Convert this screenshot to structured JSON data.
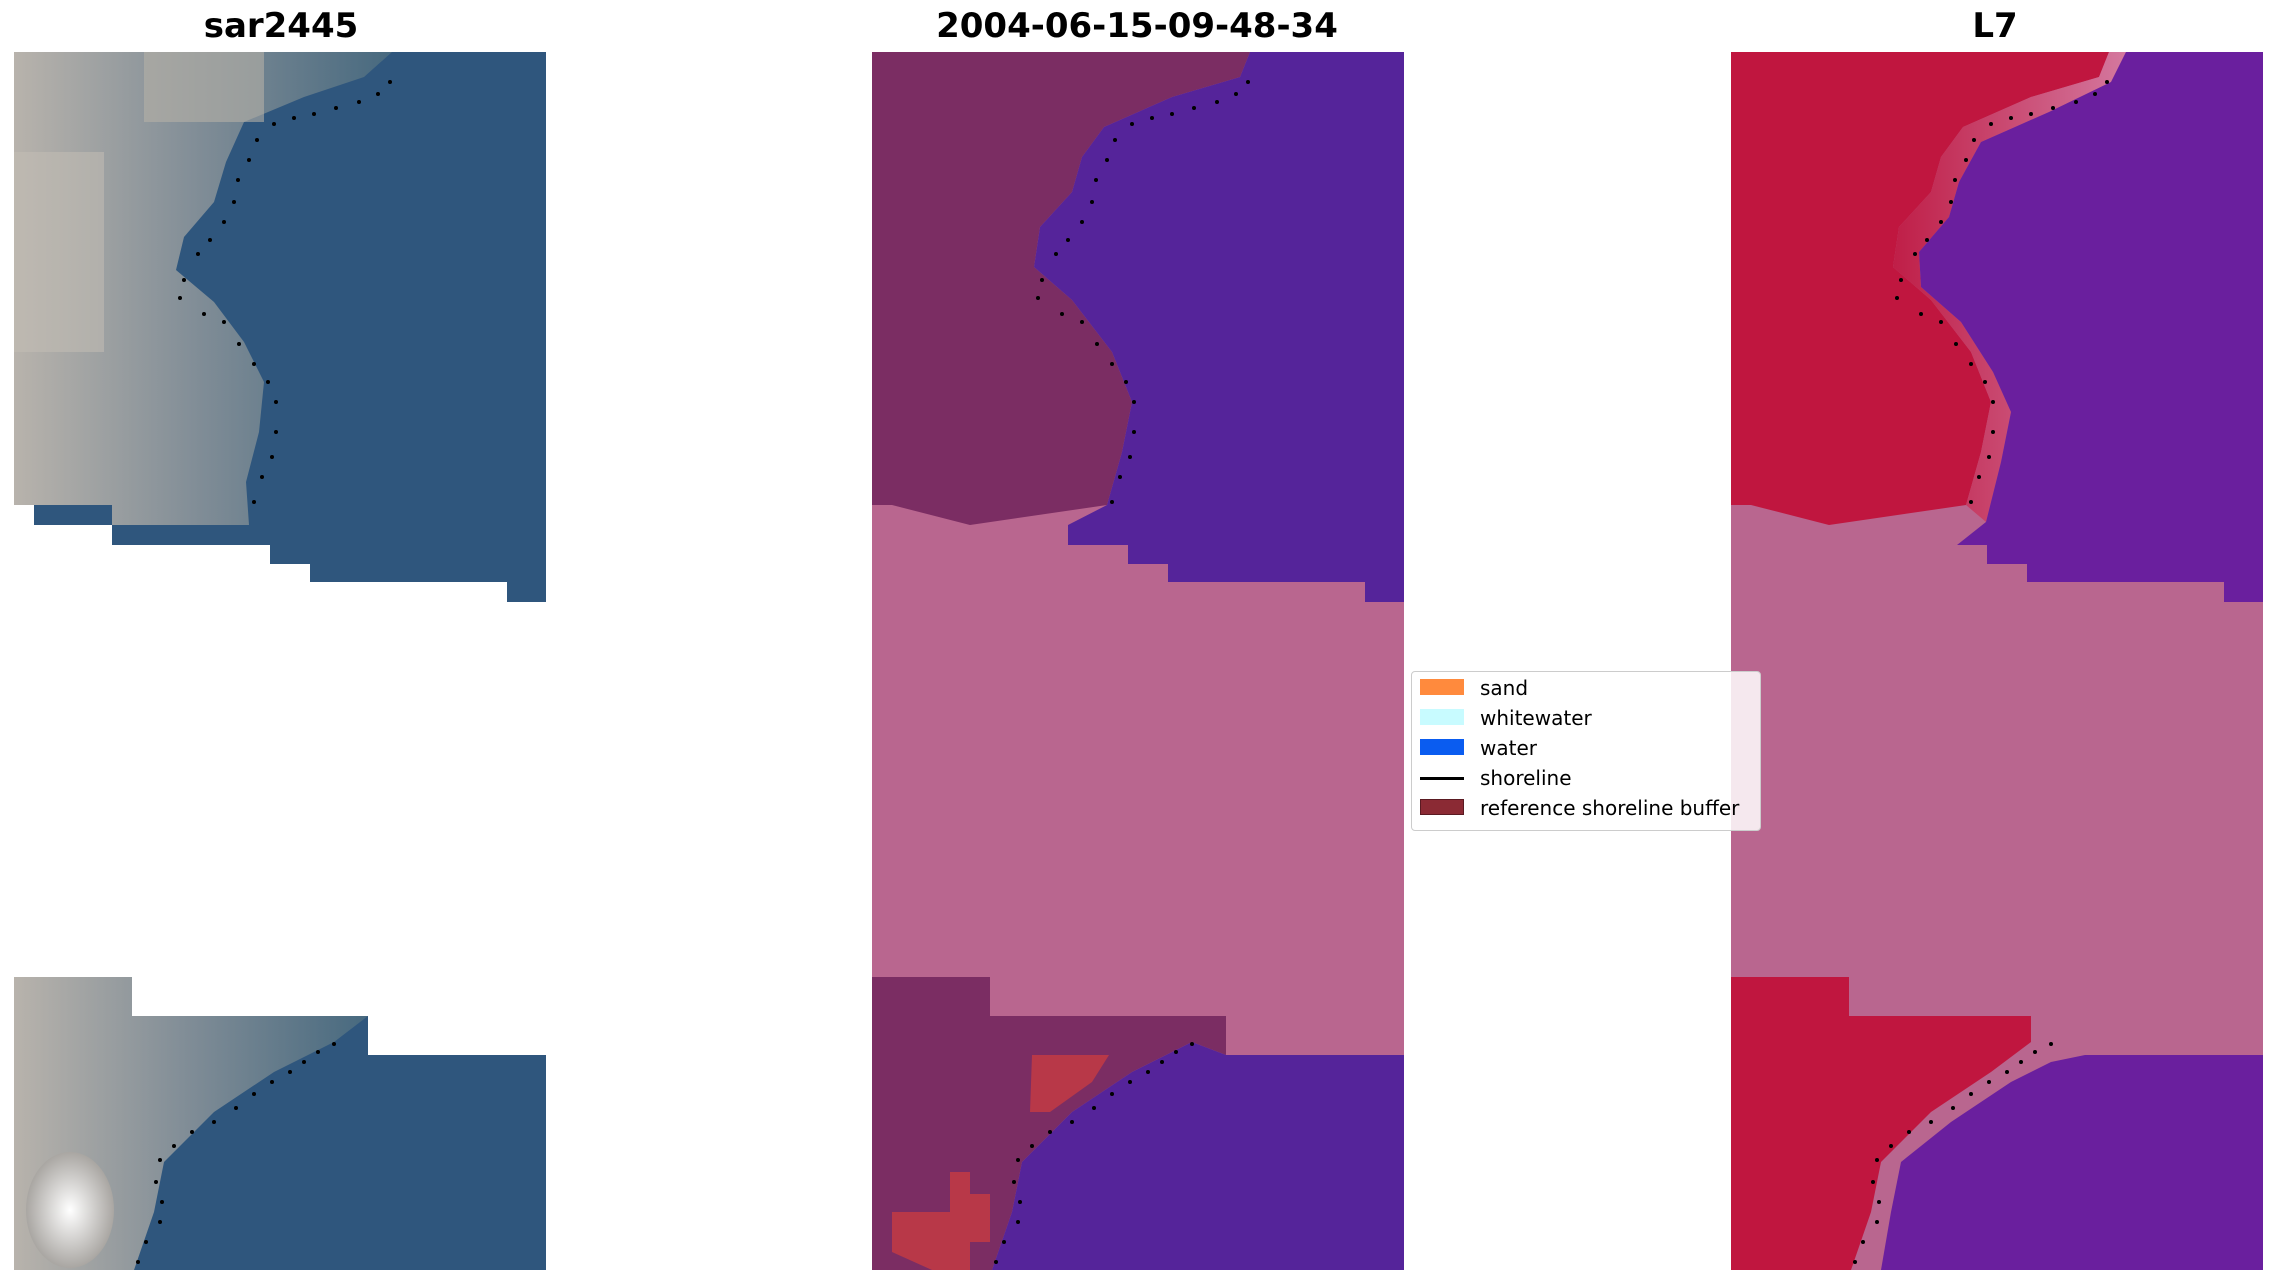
{
  "panels": {
    "rgb": {
      "title": "sar2445"
    },
    "classified": {
      "title": "2004-06-15-09-48-34"
    },
    "index": {
      "title": "L7"
    }
  },
  "legend": {
    "items": [
      {
        "label": "sand",
        "color": "#ff8a3d",
        "kind": "patch"
      },
      {
        "label": "whitewater",
        "color": "#c8fbff",
        "kind": "patch"
      },
      {
        "label": "water",
        "color": "#0a5cf0",
        "kind": "patch"
      },
      {
        "label": "shoreline",
        "color": "#000000",
        "kind": "line"
      },
      {
        "label": "reference shoreline buffer",
        "color": "#8b2a34",
        "kind": "patch"
      }
    ]
  },
  "colors": {
    "rgb_water": "#2f567d",
    "rgb_land": "#8c929a",
    "rgb_bright": "#e8ecee",
    "class_land": "#7b2d63",
    "class_water": "#55249a",
    "buffer_fill": "#b9668f",
    "class_sand_patch": "#b83848",
    "index_land": "#c0163f",
    "index_water": "#6a1f9e",
    "shoreline": "#000000"
  }
}
